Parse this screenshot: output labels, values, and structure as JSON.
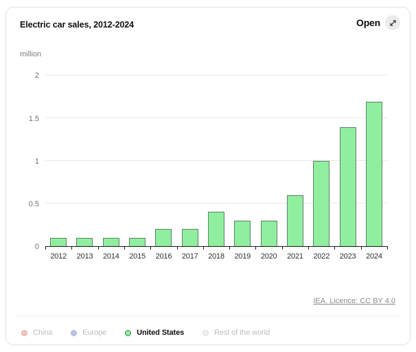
{
  "header": {
    "title": "Electric car sales, 2012-2024",
    "open_label": "Open",
    "open_icon": "expand-diagonal-arrow"
  },
  "chart_data": {
    "type": "bar",
    "title": "Electric car sales, 2012-2024",
    "unit_label": "million",
    "categories": [
      "2012",
      "2013",
      "2014",
      "2015",
      "2016",
      "2017",
      "2018",
      "2019",
      "2020",
      "2021",
      "2022",
      "2023",
      "2024"
    ],
    "series": [
      {
        "name": "United States",
        "color": "#90ee9f",
        "border_color": "#5c7f68",
        "values": [
          0.1,
          0.1,
          0.1,
          0.1,
          0.2,
          0.2,
          0.4,
          0.3,
          0.3,
          0.6,
          1.0,
          1.4,
          1.7
        ]
      }
    ],
    "ylabel": "million",
    "yticks": [
      0,
      0.5,
      1,
      1.5,
      2
    ],
    "ylim": [
      0,
      2.14
    ],
    "grid": true,
    "legend_position": "bottom"
  },
  "source": {
    "label": "IEA. Licence: CC BY 4.0"
  },
  "legend": {
    "items": [
      {
        "label": "China",
        "color": "#f2c4bd",
        "border_color": "#e9b0a7",
        "active": false
      },
      {
        "label": "Europe",
        "color": "#b9c3e6",
        "border_color": "#a8b4dd",
        "active": false
      },
      {
        "label": "United States",
        "color": "#90ee9f",
        "border_color": "#44805a",
        "active": true
      },
      {
        "label": "Rest of the world",
        "color": "#f0f0f0",
        "border_color": "#dedede",
        "active": false
      }
    ]
  }
}
